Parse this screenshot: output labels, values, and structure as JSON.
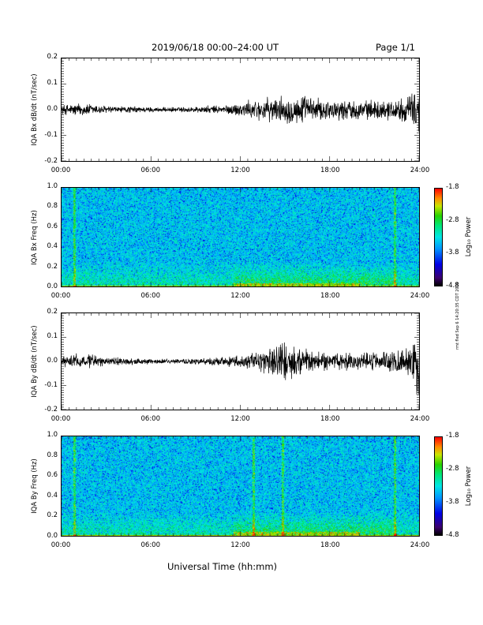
{
  "header": {
    "title": "2019/06/18   00:00–24:00  UT",
    "page": "Page 1/1"
  },
  "x_axis_title": "Universal Time (hh:mm)",
  "side_note": "rmt fled Sep 6 14:20:35 CDT 2019",
  "colorbar": {
    "label": "Log₁₀ Power",
    "ticks": [
      "-1.8",
      "-2.8",
      "-3.8",
      "-4.8"
    ]
  },
  "chart_data": [
    {
      "type": "line",
      "ylabel": "IQA Bx dB/dt (nT/sec)",
      "xlabel": "",
      "x_ticks": [
        "00:00",
        "06:00",
        "12:00",
        "18:00",
        "24:00"
      ],
      "y_ticks": [
        "0.2",
        "0.1",
        "0.0",
        "-0.1",
        "-0.2"
      ],
      "xlim": [
        0,
        24
      ],
      "ylim": [
        -0.2,
        0.2
      ],
      "series": [
        {
          "x": [
            0,
            1,
            2,
            3,
            4,
            5,
            6,
            7,
            8,
            9,
            10,
            11,
            12,
            13,
            14,
            15,
            16,
            17,
            18,
            19,
            20,
            21,
            22,
            23,
            23.9,
            24
          ],
          "y_amplitude": [
            0.015,
            0.02,
            0.018,
            0.012,
            0.01,
            0.01,
            0.008,
            0.007,
            0.008,
            0.01,
            0.012,
            0.014,
            0.022,
            0.03,
            0.035,
            0.04,
            0.045,
            0.035,
            0.03,
            0.03,
            0.028,
            0.028,
            0.03,
            0.035,
            0.06,
            0.09
          ]
        }
      ]
    },
    {
      "type": "heatmap",
      "ylabel": "IQA Bx Freq (Hz)",
      "x_ticks": [
        "00:00",
        "06:00",
        "12:00",
        "18:00",
        "24:00"
      ],
      "y_ticks": [
        "1.0",
        "0.8",
        "0.6",
        "0.4",
        "0.2",
        "0.0"
      ],
      "xlim": [
        0,
        24
      ],
      "ylim": [
        0,
        1.0
      ],
      "zlim": [
        -4.8,
        -1.8
      ],
      "vertical_lines_hours": [
        0.85,
        22.35
      ],
      "enhanced_low_freq_hours": [
        [
          11.5,
          22.5
        ]
      ]
    },
    {
      "type": "line",
      "ylabel": "IQA By dB/dt (nT/sec)",
      "xlabel": "",
      "x_ticks": [
        "00:00",
        "06:00",
        "12:00",
        "18:00",
        "24:00"
      ],
      "y_ticks": [
        "0.2",
        "0.1",
        "0.0",
        "-0.1",
        "-0.2"
      ],
      "xlim": [
        0,
        24
      ],
      "ylim": [
        -0.2,
        0.2
      ],
      "series": [
        {
          "x": [
            0,
            1,
            2,
            3,
            4,
            5,
            6,
            7,
            8,
            9,
            10,
            11,
            12,
            13,
            14,
            15,
            16,
            17,
            18,
            19,
            20,
            21,
            22,
            23,
            23.9,
            24
          ],
          "y_amplitude": [
            0.015,
            0.025,
            0.022,
            0.014,
            0.012,
            0.01,
            0.008,
            0.008,
            0.008,
            0.01,
            0.012,
            0.015,
            0.02,
            0.03,
            0.045,
            0.07,
            0.05,
            0.03,
            0.028,
            0.03,
            0.028,
            0.028,
            0.03,
            0.04,
            0.1,
            0.14
          ]
        }
      ]
    },
    {
      "type": "heatmap",
      "ylabel": "IQA By Freq (Hz)",
      "x_ticks": [
        "00:00",
        "06:00",
        "12:00",
        "18:00",
        "24:00"
      ],
      "y_ticks": [
        "1.0",
        "0.8",
        "0.6",
        "0.4",
        "0.2",
        "0.0"
      ],
      "xlim": [
        0,
        24
      ],
      "ylim": [
        0,
        1.0
      ],
      "zlim": [
        -4.8,
        -1.8
      ],
      "vertical_lines_hours": [
        0.85,
        12.85,
        14.85,
        22.35
      ],
      "enhanced_low_freq_hours": [
        [
          11.5,
          22.5
        ]
      ]
    }
  ]
}
